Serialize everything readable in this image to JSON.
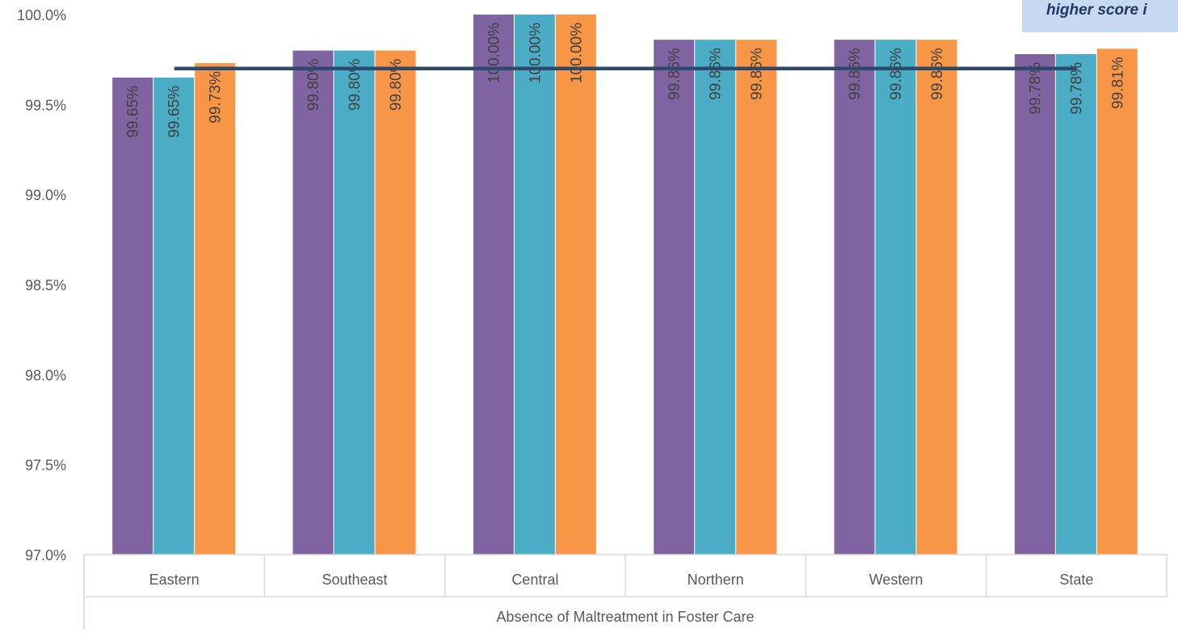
{
  "chart_data": {
    "type": "bar",
    "categories": [
      "Eastern",
      "Southeast",
      "Central",
      "Northern",
      "Western",
      "State"
    ],
    "series": [
      {
        "values": [
          99.65,
          99.8,
          100.0,
          99.86,
          99.86,
          99.78
        ],
        "labels": [
          "99.65%",
          "99.80%",
          "100.00%",
          "99.86%",
          "99.86%",
          "99.78%"
        ],
        "color": "#8064a2"
      },
      {
        "values": [
          99.65,
          99.8,
          100.0,
          99.86,
          99.86,
          99.78
        ],
        "labels": [
          "99.65%",
          "99.80%",
          "100.00%",
          "99.86%",
          "99.86%",
          "99.78%"
        ],
        "color": "#4bacc6"
      },
      {
        "values": [
          99.73,
          99.8,
          100.0,
          99.86,
          99.86,
          99.81
        ],
        "labels": [
          "99.73%",
          "99.80%",
          "100.00%",
          "99.86%",
          "99.86%",
          "99.81%"
        ],
        "color": "#f79646"
      }
    ],
    "reference_line": {
      "value": 99.7,
      "color": "#2d4a6e"
    },
    "ylim": [
      97.0,
      100.0
    ],
    "yticks": [
      97.0,
      97.5,
      98.0,
      98.5,
      99.0,
      99.5,
      100.0
    ],
    "ytick_labels": [
      "97.0%",
      "97.5%",
      "98.0%",
      "98.5%",
      "99.0%",
      "99.5%",
      "100.0%"
    ],
    "xlabel": "Absence of Maltreatment in Foster Care",
    "gridlines": false,
    "callout_text": "higher score i"
  }
}
